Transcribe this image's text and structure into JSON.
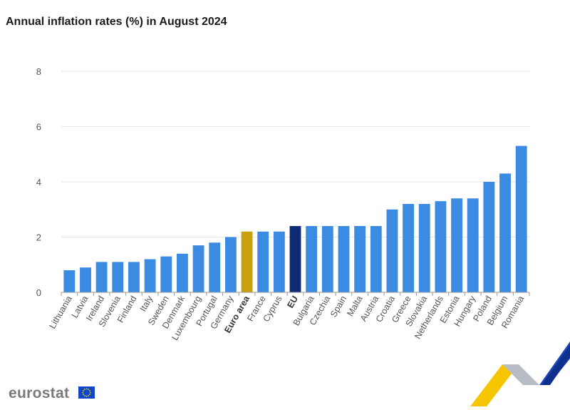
{
  "title": "Annual inflation rates (%) in August 2024",
  "logo": {
    "text": "eurostat",
    "flag_icon": "eu-flag-icon"
  },
  "colors": {
    "default": "#3b8be2",
    "euro_area": "#c9a00d",
    "eu": "#0b2b73",
    "grid": "#e6e6e6",
    "axis": "#9a9a9a",
    "label": "#555555"
  },
  "chart_data": {
    "type": "bar",
    "title": "Annual inflation rates (%) in August 2024",
    "xlabel": "",
    "ylabel": "",
    "ylim": [
      0,
      8
    ],
    "yticks": [
      0,
      2,
      4,
      6,
      8
    ],
    "grid": true,
    "highlight": {
      "Euro area": "euro_area",
      "EU": "eu"
    },
    "bold_labels": [
      "Euro area",
      "EU"
    ],
    "categories": [
      "Lithuania",
      "Latvia",
      "Ireland",
      "Slovenia",
      "Finland",
      "Italy",
      "Sweden",
      "Denmark",
      "Luxembourg",
      "Portugal",
      "Germany",
      "Euro area",
      "France",
      "Cyprus",
      "EU",
      "Bulgaria",
      "Czechia",
      "Spain",
      "Malta",
      "Austria",
      "Croatia",
      "Greece",
      "Slovakia",
      "Netherlands",
      "Estonia",
      "Hungary",
      "Poland",
      "Belgium",
      "Romania"
    ],
    "values": [
      0.8,
      0.9,
      1.1,
      1.1,
      1.1,
      1.2,
      1.3,
      1.4,
      1.7,
      1.8,
      2.0,
      2.2,
      2.2,
      2.2,
      2.4,
      2.4,
      2.4,
      2.4,
      2.4,
      2.4,
      3.0,
      3.2,
      3.2,
      3.3,
      3.4,
      3.4,
      4.0,
      4.3,
      5.3
    ]
  }
}
